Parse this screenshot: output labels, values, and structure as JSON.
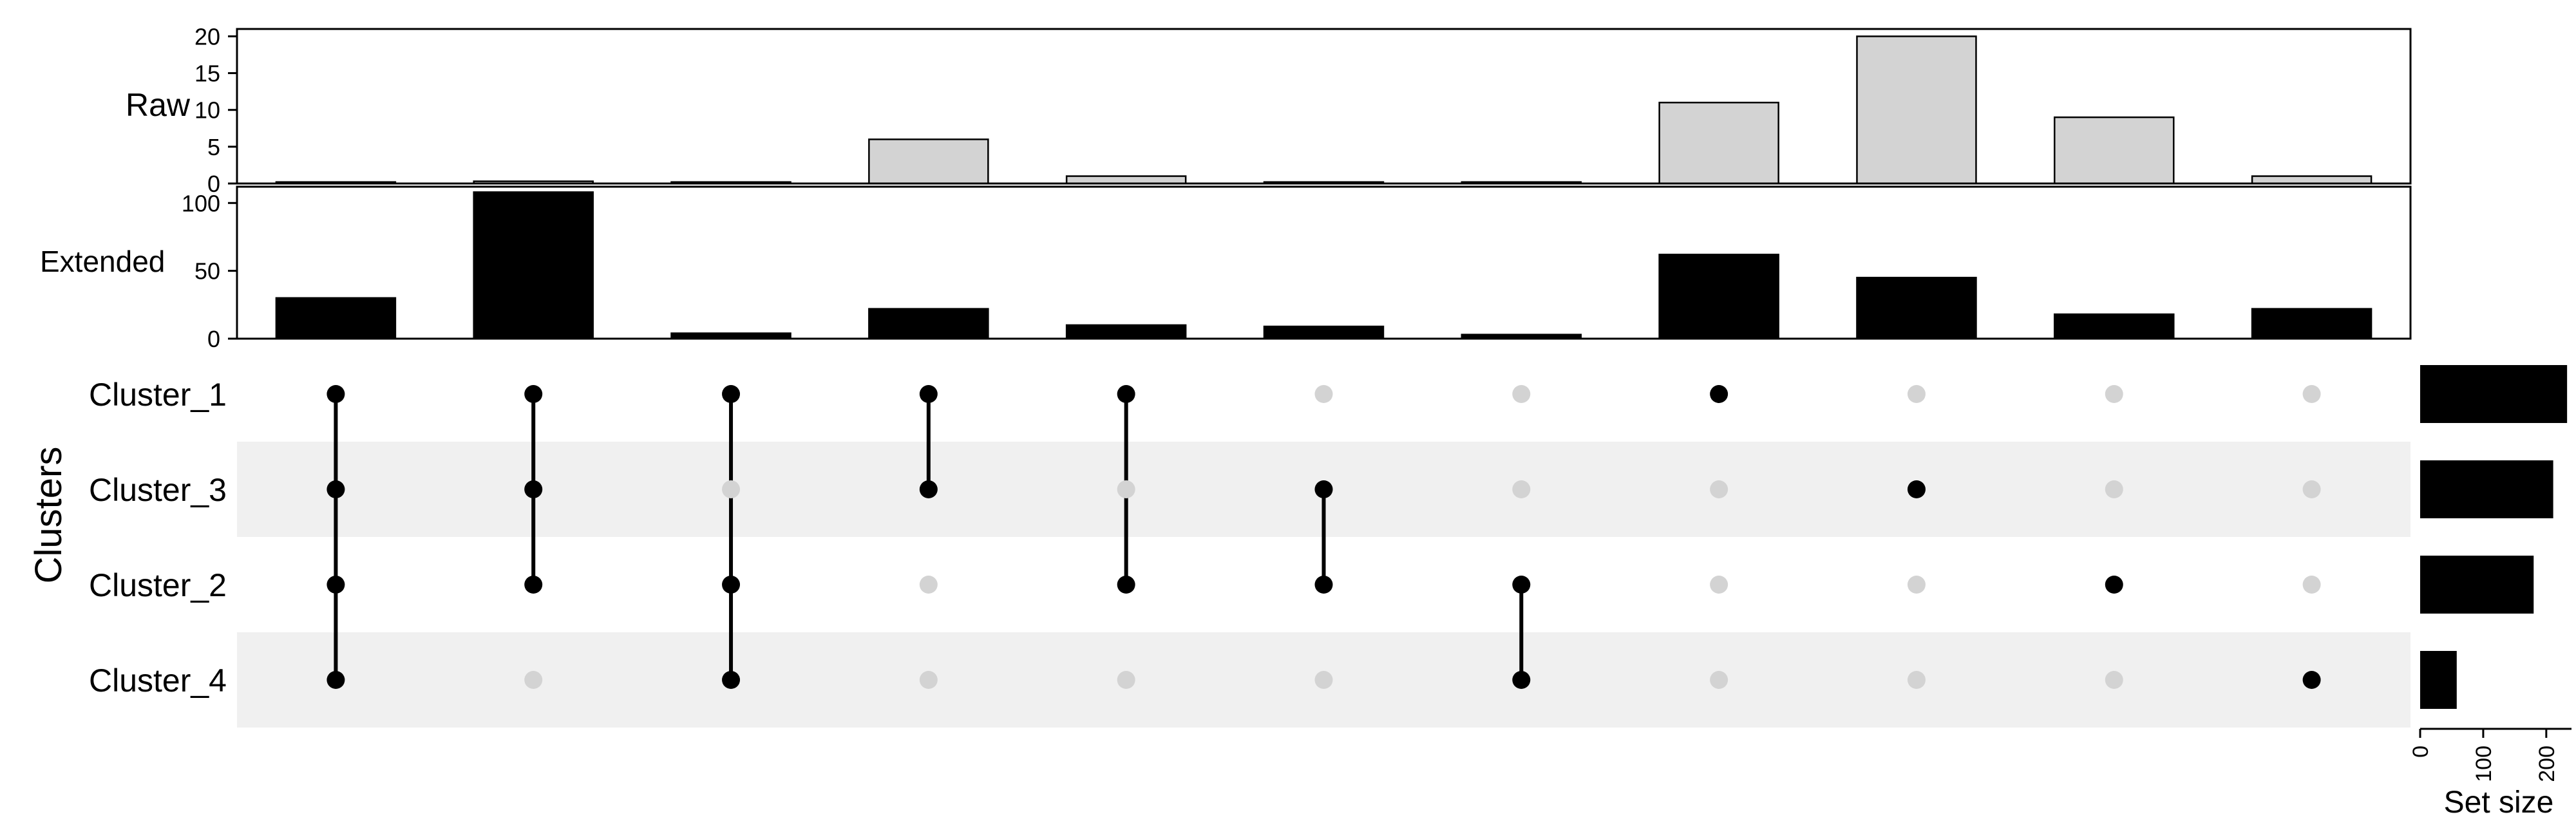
{
  "chart_data": [
    {
      "type": "bar",
      "panel": "raw",
      "ylabel": "Raw",
      "ylim": [
        0,
        21
      ],
      "yticks": [
        0,
        5,
        10,
        15,
        20
      ],
      "values": [
        0.2,
        0.3,
        0.2,
        6,
        1,
        0.2,
        0.2,
        11,
        20,
        9,
        1
      ],
      "bar_color": "#d3d3d3"
    },
    {
      "type": "bar",
      "panel": "extended",
      "ylabel": "Extended",
      "ylim": [
        0,
        112
      ],
      "yticks": [
        0,
        50,
        100
      ],
      "values": [
        30,
        108,
        4,
        22,
        10,
        9,
        3,
        62,
        45,
        18,
        22
      ],
      "bar_color": "#000000"
    },
    {
      "type": "upset-matrix",
      "ylabel": "Clusters",
      "sets": [
        "Cluster_1",
        "Cluster_3",
        "Cluster_2",
        "Cluster_4"
      ],
      "intersections": [
        [
          "Cluster_1",
          "Cluster_3",
          "Cluster_2",
          "Cluster_4"
        ],
        [
          "Cluster_1",
          "Cluster_3",
          "Cluster_2"
        ],
        [
          "Cluster_1",
          "Cluster_2",
          "Cluster_4"
        ],
        [
          "Cluster_1",
          "Cluster_3"
        ],
        [
          "Cluster_1",
          "Cluster_2"
        ],
        [
          "Cluster_3",
          "Cluster_2"
        ],
        [
          "Cluster_2",
          "Cluster_4"
        ],
        [
          "Cluster_1"
        ],
        [
          "Cluster_3"
        ],
        [
          "Cluster_2"
        ],
        [
          "Cluster_4"
        ]
      ],
      "active_color": "#000000",
      "inactive_color": "#d3d3d3",
      "stripe_color": "#f0f0f0"
    },
    {
      "type": "bar",
      "orientation": "horizontal",
      "panel": "set-size",
      "xlabel": "Set size",
      "xlim": [
        0,
        240
      ],
      "xticks": [
        0,
        100,
        200
      ],
      "categories": [
        "Cluster_1",
        "Cluster_3",
        "Cluster_2",
        "Cluster_4"
      ],
      "values": [
        233,
        211,
        180,
        58
      ],
      "bar_color": "#000000"
    }
  ]
}
